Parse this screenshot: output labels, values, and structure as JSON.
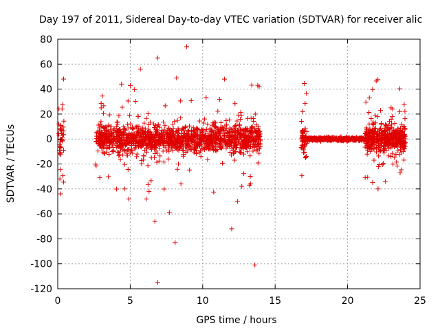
{
  "chart_data": {
    "type": "scatter",
    "title": "Day 197 of 2011, Sidereal Day-to-day VTEC variation (SDTVAR) for receiver alic",
    "xlabel": "GPS time / hours",
    "ylabel": "SDTVAR / TECUs",
    "xlim": [
      0,
      25
    ],
    "ylim": [
      -120,
      80
    ],
    "xticks": [
      0,
      5,
      10,
      15,
      20,
      25
    ],
    "yticks": [
      -120,
      -100,
      -80,
      -60,
      -40,
      -20,
      0,
      20,
      40,
      60,
      80
    ],
    "xtick_labels": [
      "0",
      "5",
      "10",
      "15",
      "20",
      "25"
    ],
    "ytick_labels": [
      "-120",
      "-100",
      "-80",
      "-60",
      "-40",
      "-20",
      "0",
      "20",
      "40",
      "60",
      "80"
    ],
    "grid": true,
    "marker": "+",
    "color": "#e00000",
    "series": [
      {
        "name": "SDTVAR",
        "clusters": [
          {
            "x_range": [
              0.05,
              0.45
            ],
            "count": 40,
            "spread": 8
          },
          {
            "x_range": [
              2.6,
              14.0
            ],
            "count": 1500,
            "spread": 5
          },
          {
            "x_range": [
              16.8,
              17.2
            ],
            "count": 60,
            "spread": 6
          },
          {
            "x_range": [
              17.2,
              21.2
            ],
            "count": 500,
            "spread": 0.6
          },
          {
            "x_range": [
              21.2,
              24.0
            ],
            "count": 500,
            "spread": 5
          }
        ],
        "outliers": [
          {
            "x": 0.2,
            "y": -44
          },
          {
            "x": 0.3,
            "y": 24
          },
          {
            "x": 0.15,
            "y": -32
          },
          {
            "x": 2.9,
            "y": -31
          },
          {
            "x": 3.0,
            "y": 25
          },
          {
            "x": 4.4,
            "y": 44
          },
          {
            "x": 4.9,
            "y": -48
          },
          {
            "x": 4.6,
            "y": -40
          },
          {
            "x": 5.7,
            "y": 56
          },
          {
            "x": 6.1,
            "y": -48
          },
          {
            "x": 6.3,
            "y": -42
          },
          {
            "x": 6.7,
            "y": -66
          },
          {
            "x": 6.9,
            "y": -115
          },
          {
            "x": 6.9,
            "y": 65
          },
          {
            "x": 7.7,
            "y": -59
          },
          {
            "x": 8.1,
            "y": -83
          },
          {
            "x": 8.2,
            "y": 49
          },
          {
            "x": 8.5,
            "y": -36
          },
          {
            "x": 8.9,
            "y": 74
          },
          {
            "x": 11.5,
            "y": 48
          },
          {
            "x": 12.0,
            "y": -72
          },
          {
            "x": 12.4,
            "y": -50
          },
          {
            "x": 12.7,
            "y": -38
          },
          {
            "x": 13.3,
            "y": -36
          },
          {
            "x": 13.6,
            "y": -101
          },
          {
            "x": 13.8,
            "y": 43
          },
          {
            "x": 13.9,
            "y": 42
          },
          {
            "x": 16.9,
            "y": 22
          },
          {
            "x": 17.1,
            "y": -15
          },
          {
            "x": 21.5,
            "y": 33
          },
          {
            "x": 22.1,
            "y": -40
          },
          {
            "x": 22.6,
            "y": -34
          },
          {
            "x": 23.0,
            "y": 25
          },
          {
            "x": 23.6,
            "y": 22
          }
        ]
      }
    ]
  }
}
